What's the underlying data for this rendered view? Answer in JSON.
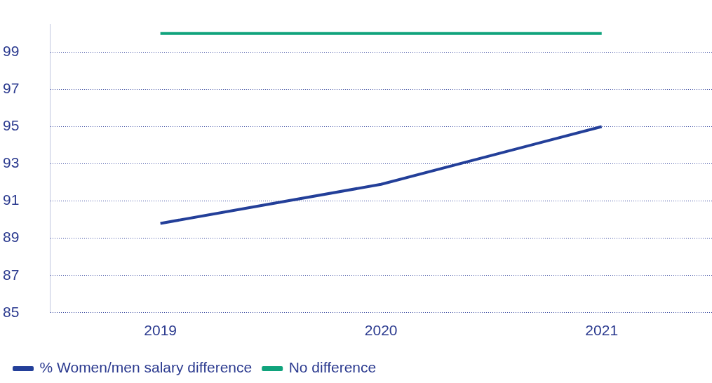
{
  "chart_data": {
    "type": "line",
    "categories": [
      "2019",
      "2020",
      "2021"
    ],
    "series": [
      {
        "name": "% Women/men salary difference",
        "color": "#233f99",
        "values": [
          89.8,
          91.9,
          95
        ]
      },
      {
        "name": "No difference",
        "color": "#10a37c",
        "values": [
          100,
          100,
          100
        ]
      }
    ],
    "ylim": [
      85,
      100.5
    ],
    "yticks": [
      85,
      87,
      89,
      91,
      93,
      95,
      97,
      99
    ],
    "grid": "y",
    "legend": "bottom left",
    "marker": "none",
    "line_style": "solid"
  }
}
